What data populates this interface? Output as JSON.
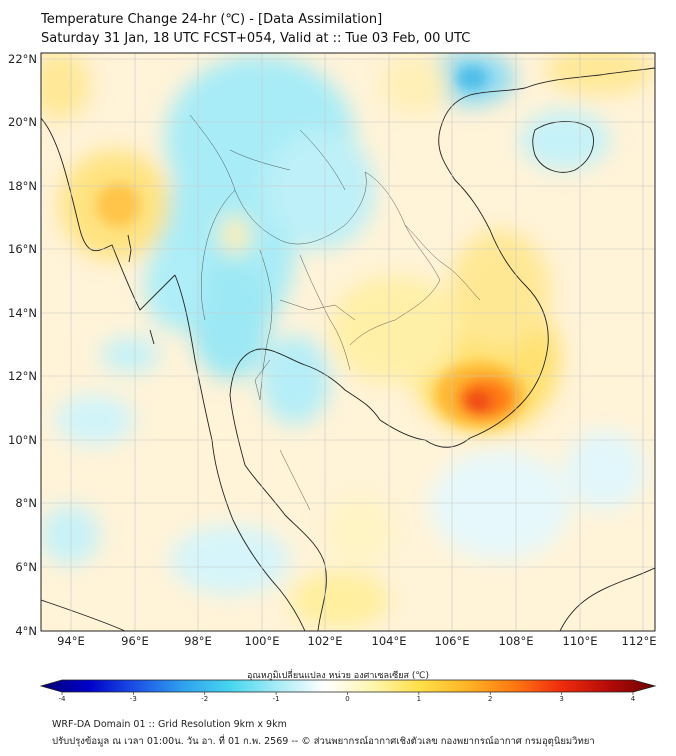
{
  "title_line1": "Temperature Change 24-hr (℃) - [Data Assimilation]",
  "title_line2": "Saturday 31 Jan, 18 UTC FCST+054, Valid at :: Tue 03 Feb, 00 UTC",
  "lat_labels": [
    "22°N",
    "20°N",
    "18°N",
    "16°N",
    "14°N",
    "12°N",
    "10°N",
    "8°N",
    "6°N",
    "4°N"
  ],
  "lon_labels": [
    "94°E",
    "96°E",
    "98°E",
    "100°E",
    "102°E",
    "104°E",
    "106°E",
    "108°E",
    "110°E",
    "112°E"
  ],
  "colorbar": {
    "label": "อุณหภูมิเปลี่ยนแปลง หน่วย องศาเซลเซียส (℃)",
    "ticks": [
      "-4",
      "-3",
      "-2",
      "-1",
      "0",
      "1",
      "2",
      "3",
      "4"
    ],
    "min": -4,
    "max": 4,
    "colors": [
      "#070070",
      "#0000c8",
      "#1c50e6",
      "#2fa0ee",
      "#46d6f0",
      "#a6ecf6",
      "#ffffff",
      "#fff6b0",
      "#ffe04a",
      "#ffb526",
      "#ff7a12",
      "#f02c0c",
      "#b60c08",
      "#6c0002"
    ]
  },
  "footer_line1": "WRF-DA Domain 01 :: Grid Resolution 9km x 9km",
  "footer_line2": "ปรับปรุงข้อมูล ณ เวลา 01:00น. วัน อา. ที่ 01 ก.พ. 2569 -- © ส่วนพยากรณ์อากาศเชิงตัวเลข กองพยากรณ์อากาศ กรมอุตุนิยมวิทยา"
}
